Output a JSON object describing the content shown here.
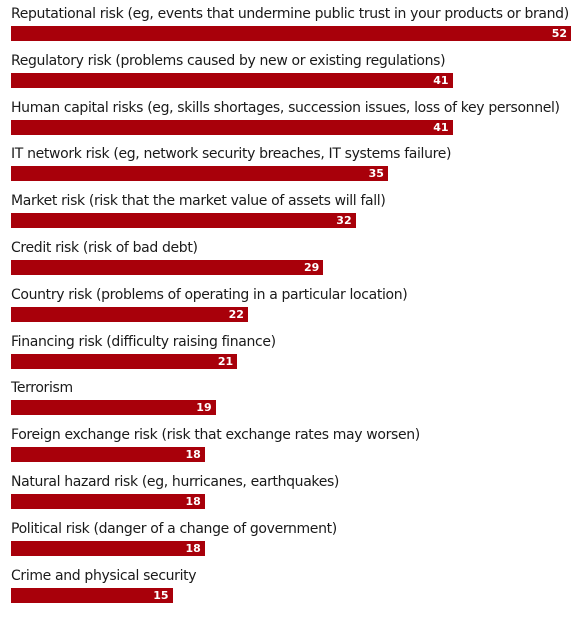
{
  "chart_data": {
    "type": "bar",
    "orientation": "horizontal",
    "categories": [
      "Reputational risk (eg, events that undermine public trust in your products or brand)",
      "Regulatory risk (problems caused by new or existing regulations)",
      "Human capital risks (eg, skills shortages, succession issues, loss of key personnel)",
      "IT network risk (eg, network security breaches, IT systems failure)",
      "Market risk (risk that the market value of assets will fall)",
      "Credit risk (risk of bad debt)",
      "Country risk (problems of operating in a particular location)",
      "Financing risk (difficulty raising finance)",
      "Terrorism",
      "Foreign exchange risk (risk that exchange rates may worsen)",
      "Natural hazard risk (eg, hurricanes, earthquakes)",
      "Political risk (danger of a change of government)",
      "Crime and physical security"
    ],
    "values": [
      52,
      41,
      41,
      35,
      32,
      29,
      22,
      21,
      19,
      18,
      18,
      18,
      15
    ],
    "title": "",
    "xlabel": "",
    "ylabel": "",
    "xlim": [
      0,
      52
    ],
    "grid": false,
    "data_labels": true,
    "bar_color": "#a8000a"
  }
}
